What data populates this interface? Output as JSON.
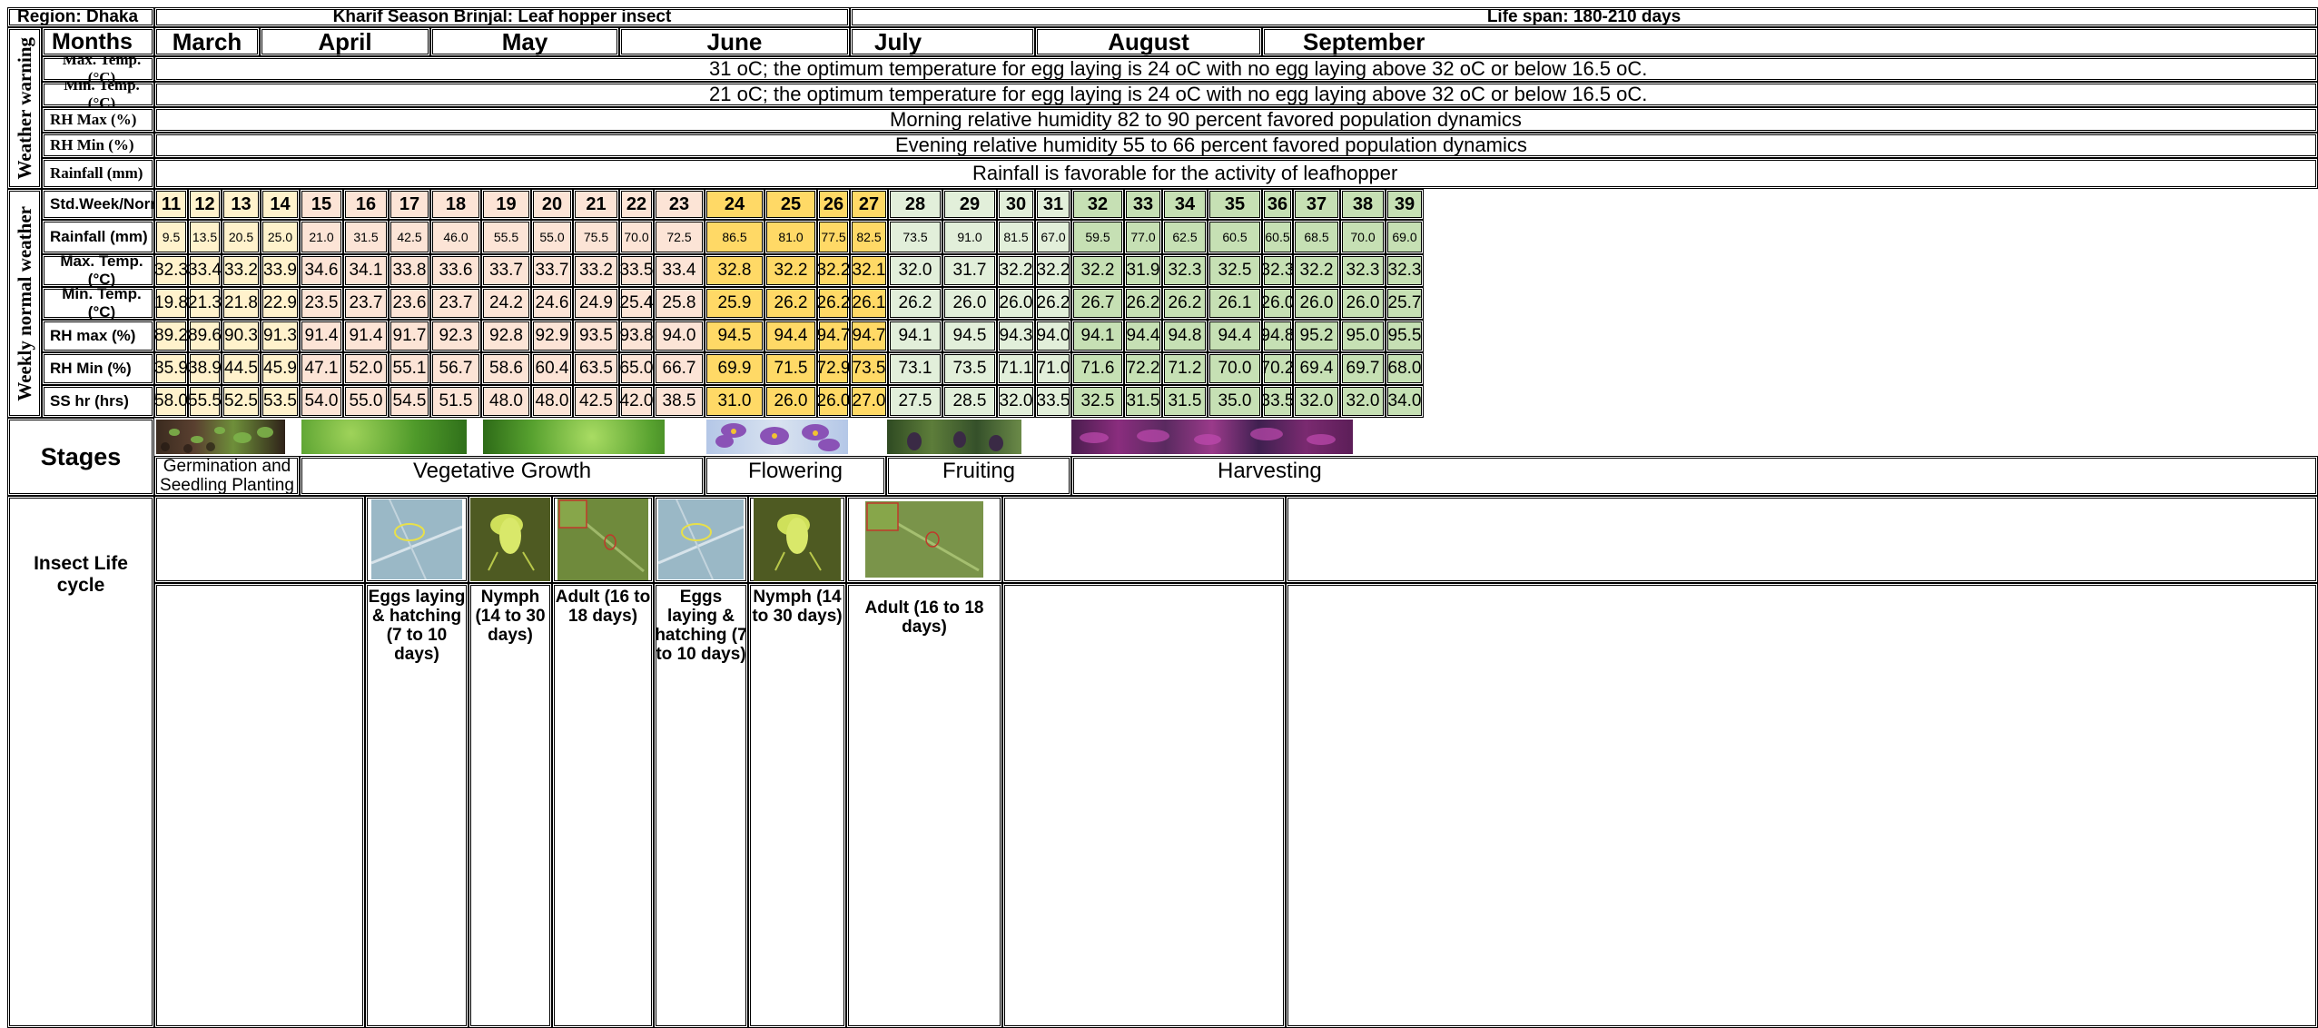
{
  "header": {
    "region": "Region: Dhaka",
    "title": "Kharif Season Brinjal: Leaf hopper insect",
    "lifespan": "Life span: 180-210 days"
  },
  "sections": {
    "weather_warning": "Weather warning",
    "weekly_normal": "Weekly normal weather"
  },
  "months_label": "Months",
  "months": [
    "March",
    "April",
    "May",
    "June",
    "July",
    "August",
    "September"
  ],
  "warning_rows": [
    {
      "label": "Max. Temp. (°C)",
      "text": "31 oC; the optimum temperature for egg laying is 24 oC with no egg laying above 32 oC or below 16.5 oC."
    },
    {
      "label": "Min. Temp. (°C)",
      "text": "21 oC; the optimum temperature for egg laying is 24 oC with no egg laying above 32 oC or below 16.5 oC."
    },
    {
      "label": "RH Max (%)",
      "text": "Morning relative humidity 82 to 90 percent favored population dynamics"
    },
    {
      "label": "RH Min (%)",
      "text": "Evening relative humidity 55 to 66 percent favored population dynamics"
    },
    {
      "label": "Rainfall (mm)",
      "text": "Rainfall is favorable for the activity of leafhopper"
    }
  ],
  "weekly": {
    "labels": [
      "Std.Week/Normal",
      "Rainfall (mm)",
      "Max. Temp. (°C)",
      "Min. Temp. (°C)",
      "RH max (%)",
      "RH Min (%)",
      "SS hr (hrs)"
    ],
    "weeks": [
      "11",
      "12",
      "13",
      "14",
      "15",
      "16",
      "17",
      "18",
      "19",
      "20",
      "21",
      "22",
      "23",
      "24",
      "25",
      "26",
      "27",
      "28",
      "29",
      "30",
      "31",
      "32",
      "33",
      "34",
      "35",
      "36",
      "37",
      "38",
      "39"
    ],
    "rainfall": [
      "9.5",
      "13.5",
      "20.5",
      "25.0",
      "21.0",
      "31.5",
      "42.5",
      "46.0",
      "55.5",
      "55.0",
      "75.5",
      "70.0",
      "72.5",
      "86.5",
      "81.0",
      "77.5",
      "82.5",
      "73.5",
      "91.0",
      "81.5",
      "67.0",
      "59.5",
      "77.0",
      "62.5",
      "60.5",
      "60.5",
      "68.5",
      "70.0",
      "69.0"
    ],
    "max_temp": [
      "32.3",
      "33.4",
      "33.2",
      "33.9",
      "34.6",
      "34.1",
      "33.8",
      "33.6",
      "33.7",
      "33.7",
      "33.2",
      "33.5",
      "33.4",
      "32.8",
      "32.2",
      "32.2",
      "32.1",
      "32.0",
      "31.7",
      "32.2",
      "32.2",
      "32.2",
      "31.9",
      "32.3",
      "32.5",
      "32.3",
      "32.2",
      "32.3",
      "32.3"
    ],
    "min_temp": [
      "19.8",
      "21.3",
      "21.8",
      "22.9",
      "23.5",
      "23.7",
      "23.6",
      "23.7",
      "24.2",
      "24.6",
      "24.9",
      "25.4",
      "25.8",
      "25.9",
      "26.2",
      "26.2",
      "26.1",
      "26.2",
      "26.0",
      "26.0",
      "26.2",
      "26.7",
      "26.2",
      "26.2",
      "26.1",
      "26.0",
      "26.0",
      "26.0",
      "25.7"
    ],
    "rh_max": [
      "89.2",
      "89.6",
      "90.3",
      "91.3",
      "91.4",
      "91.4",
      "91.7",
      "92.3",
      "92.8",
      "92.9",
      "93.5",
      "93.8",
      "94.0",
      "94.5",
      "94.4",
      "94.7",
      "94.7",
      "94.1",
      "94.5",
      "94.3",
      "94.0",
      "94.1",
      "94.4",
      "94.8",
      "94.4",
      "94.8",
      "95.2",
      "95.0",
      "95.5"
    ],
    "rh_min": [
      "35.9",
      "38.9",
      "44.5",
      "45.9",
      "47.1",
      "52.0",
      "55.1",
      "56.7",
      "58.6",
      "60.4",
      "63.5",
      "65.0",
      "66.7",
      "69.9",
      "71.5",
      "72.9",
      "73.5",
      "73.1",
      "73.5",
      "71.1",
      "71.0",
      "71.6",
      "72.2",
      "71.2",
      "70.0",
      "70.2",
      "69.4",
      "69.7",
      "68.0"
    ],
    "ss_hr": [
      "58.0",
      "55.5",
      "52.5",
      "53.5",
      "54.0",
      "55.0",
      "54.5",
      "51.5",
      "48.0",
      "48.0",
      "42.5",
      "42.0",
      "38.5",
      "31.0",
      "26.0",
      "26.0",
      "27.0",
      "27.5",
      "28.5",
      "32.0",
      "33.5",
      "32.5",
      "31.5",
      "31.5",
      "35.0",
      "33.5",
      "32.0",
      "32.0",
      "34.0"
    ]
  },
  "stages_label": "Stages",
  "stages": [
    "Germination and Seedling Planting",
    "Vegetative Growth",
    "Flowering",
    "Fruiting",
    "Harvesting"
  ],
  "insect_label": "Insect Life cycle",
  "insect_stages": [
    "Eggs laying & hatching (7 to 10 days)",
    "Nymph (14 to 30 days)",
    "Adult (16 to 18 days)",
    "Eggs laying & hatching (7 to 10 days)",
    "Nymph (14 to 30 days)",
    "Adult (16 to 18 days)"
  ],
  "colors": {
    "early": "#fff2cc",
    "vegetative": "#fce4d6",
    "flowering": "#ffd966",
    "fruiting": "#e2efda",
    "harvest": "#c6e0b4"
  },
  "icons": [
    "seedling-photo",
    "leaf-photo",
    "flower-photo",
    "fruit-photo",
    "harvest-photo",
    "egg-leaf-photo",
    "nymph-photo",
    "adult-photo"
  ]
}
